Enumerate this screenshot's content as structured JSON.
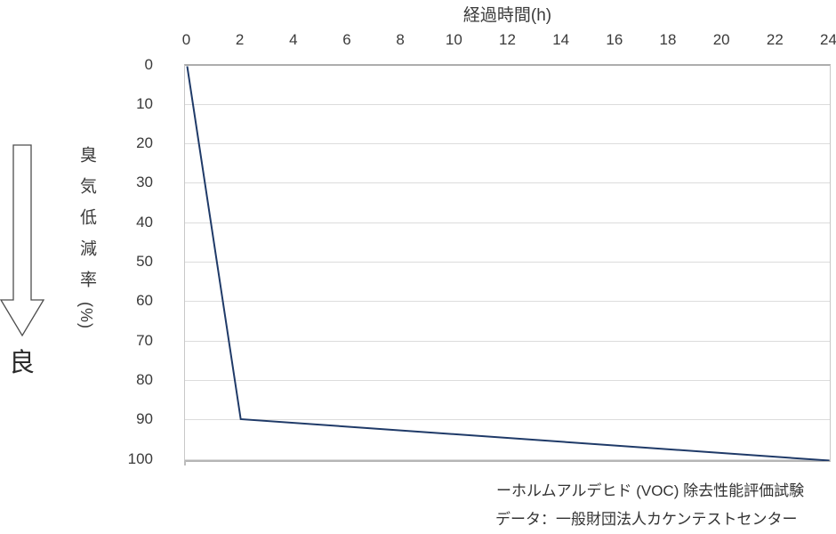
{
  "chart_data": {
    "type": "line",
    "x_axis": {
      "label": "経過時間(h)",
      "position": "top",
      "range": [
        0,
        24
      ],
      "ticks": [
        0,
        2,
        4,
        6,
        8,
        10,
        12,
        14,
        16,
        18,
        20,
        22,
        24
      ]
    },
    "y_axis": {
      "label": "臭気低減率(%)",
      "label_main": "臭気低減率",
      "label_unit": "(%)",
      "range": [
        0,
        100
      ],
      "direction": "0 at top, 100 at bottom (inverted)",
      "ticks": [
        0,
        10,
        20,
        30,
        40,
        50,
        60,
        70,
        80,
        90,
        100
      ]
    },
    "grid": "horizontal",
    "legend_position": "none",
    "series": [
      {
        "name": "ホルムアルデヒド (VOC) 除去性能評価試験",
        "color": "#1f3a68",
        "points": [
          {
            "x": 0,
            "y": 0
          },
          {
            "x": 2,
            "y": 89.5
          },
          {
            "x": 24,
            "y": 100
          }
        ]
      }
    ]
  },
  "annotations": {
    "good_label": "良",
    "arrow_icon": "down-arrow"
  },
  "captions": {
    "line1": "ーホルムアルデヒド (VOC) 除去性能評価試験",
    "line2": "データ：一般財団法人カケンテストセンター"
  },
  "colors": {
    "series_line": "#1f3a68",
    "gridline": "#dcdcdc",
    "axis_border": "#b5b5b5",
    "text": "#3a3a3a"
  }
}
